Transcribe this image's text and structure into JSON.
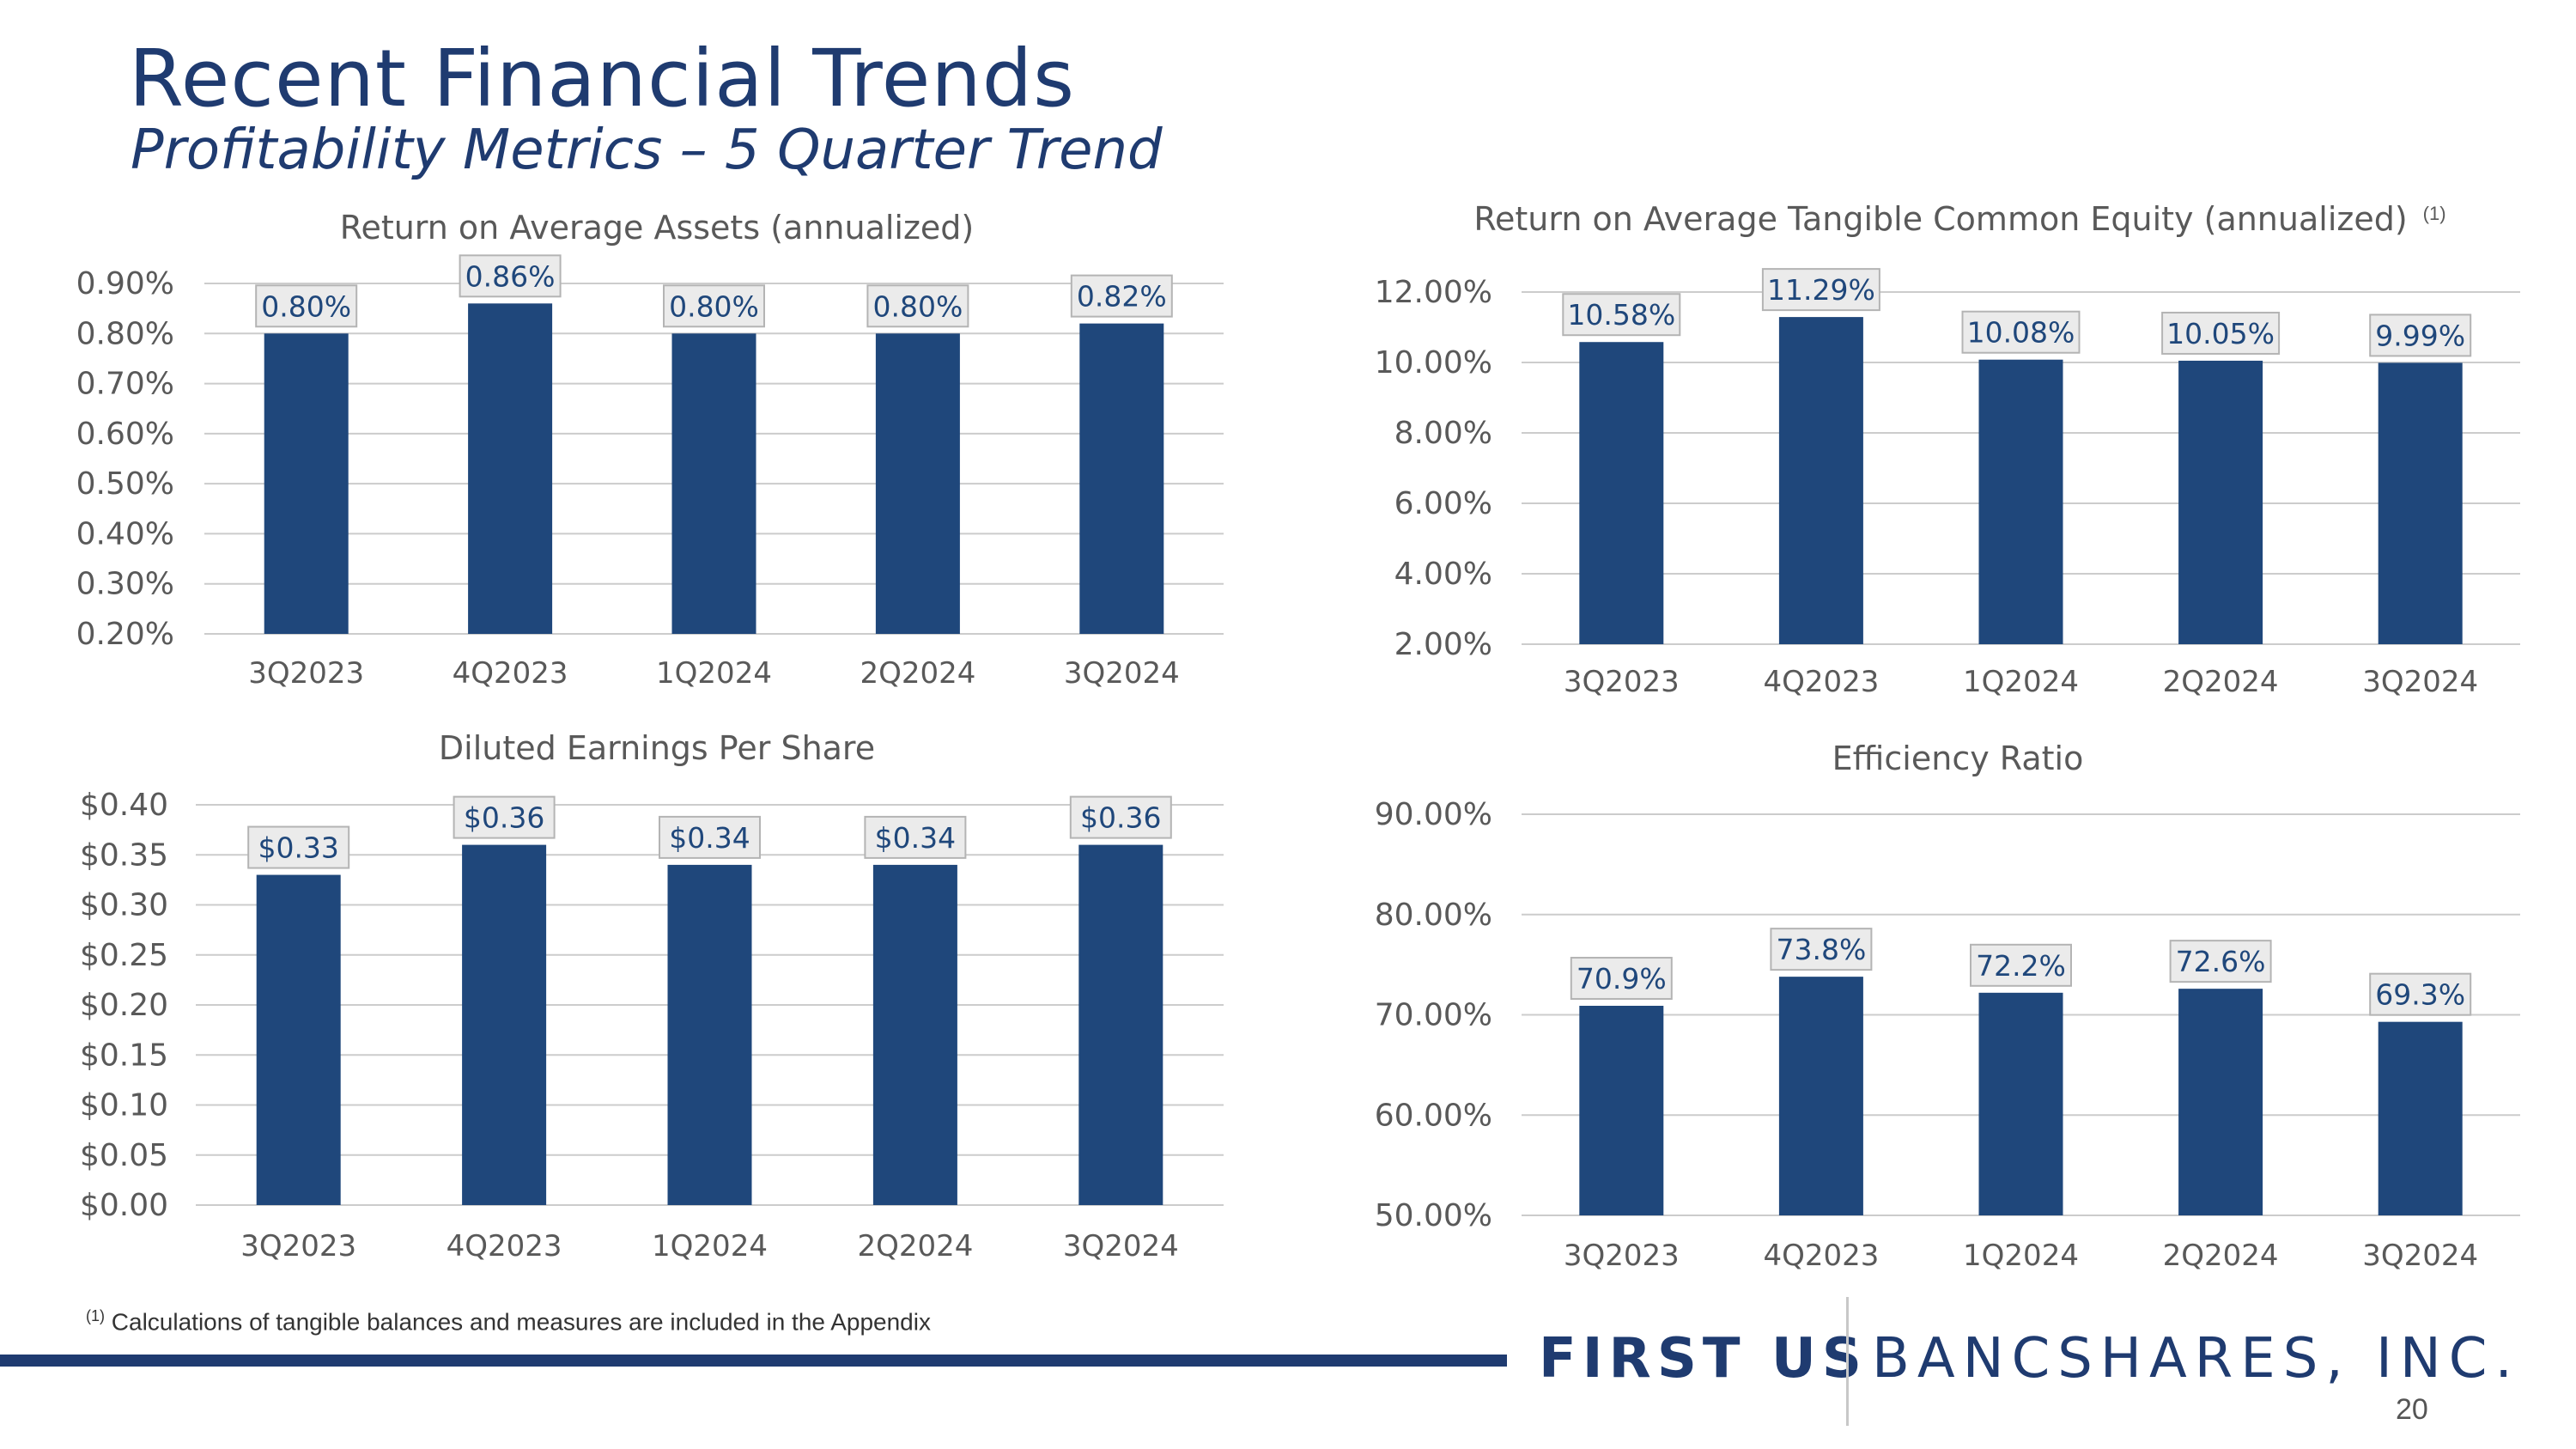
{
  "page": {
    "title": "Recent Financial Trends",
    "subtitle": "Profitability Metrics – 5 Quarter Trend",
    "footnote_marker": "(1)",
    "footnote_text": "Calculations of tangible balances and measures are included in the Appendix",
    "brand_primary": "FIRST US",
    "brand_secondary": "BANCSHARES, INC.",
    "page_number": "20"
  },
  "colors": {
    "bar": "#1f477b",
    "title": "#1f3b70",
    "label_text": "#1f477b",
    "label_bg": "#ebebeb",
    "label_border": "#b4b4b4",
    "grid": "#cccccc",
    "axis_text": "#595959"
  },
  "chart_data": [
    {
      "type": "bar",
      "title": "Return on Average Assets (annualized)",
      "title_note": "",
      "categories": [
        "3Q2023",
        "4Q2023",
        "1Q2024",
        "2Q2024",
        "3Q2024"
      ],
      "values": [
        0.8,
        0.86,
        0.8,
        0.8,
        0.82
      ],
      "data_labels": [
        "0.80%",
        "0.86%",
        "0.80%",
        "0.80%",
        "0.82%"
      ],
      "ylim": [
        0.2,
        0.9
      ],
      "yticks": [
        0.2,
        0.3,
        0.4,
        0.5,
        0.6,
        0.7,
        0.8,
        0.9
      ],
      "ytick_labels": [
        "0.20%",
        "0.30%",
        "0.40%",
        "0.50%",
        "0.60%",
        "0.70%",
        "0.80%",
        "0.90%"
      ],
      "xlabel": "",
      "ylabel": "",
      "grid": true
    },
    {
      "type": "bar",
      "title": "Return on Average Tangible Common Equity (annualized)",
      "title_note": "(1)",
      "categories": [
        "3Q2023",
        "4Q2023",
        "1Q2024",
        "2Q2024",
        "3Q2024"
      ],
      "values": [
        10.58,
        11.29,
        10.08,
        10.05,
        9.99
      ],
      "data_labels": [
        "10.58%",
        "11.29%",
        "10.08%",
        "10.05%",
        "9.99%"
      ],
      "ylim": [
        2.0,
        12.0
      ],
      "yticks": [
        2,
        4,
        6,
        8,
        10,
        12
      ],
      "ytick_labels": [
        "2.00%",
        "4.00%",
        "6.00%",
        "8.00%",
        "10.00%",
        "12.00%"
      ],
      "xlabel": "",
      "ylabel": "",
      "grid": true
    },
    {
      "type": "bar",
      "title": "Diluted Earnings Per Share",
      "title_note": "",
      "categories": [
        "3Q2023",
        "4Q2023",
        "1Q2024",
        "2Q2024",
        "3Q2024"
      ],
      "values": [
        0.33,
        0.36,
        0.34,
        0.34,
        0.36
      ],
      "data_labels": [
        "$0.33",
        "$0.36",
        "$0.34",
        "$0.34",
        "$0.36"
      ],
      "ylim": [
        0.0,
        0.4
      ],
      "yticks": [
        0,
        0.05,
        0.1,
        0.15,
        0.2,
        0.25,
        0.3,
        0.35,
        0.4
      ],
      "ytick_labels": [
        "$0.00",
        "$0.05",
        "$0.10",
        "$0.15",
        "$0.20",
        "$0.25",
        "$0.30",
        "$0.35",
        "$0.40"
      ],
      "xlabel": "",
      "ylabel": "",
      "grid": true
    },
    {
      "type": "bar",
      "title": "Efficiency Ratio",
      "title_note": "",
      "categories": [
        "3Q2023",
        "4Q2023",
        "1Q2024",
        "2Q2024",
        "3Q2024"
      ],
      "values": [
        70.9,
        73.8,
        72.2,
        72.6,
        69.3
      ],
      "data_labels": [
        "70.9%",
        "73.8%",
        "72.2%",
        "72.6%",
        "69.3%"
      ],
      "ylim": [
        50.0,
        90.0
      ],
      "yticks": [
        50,
        60,
        70,
        80,
        90
      ],
      "ytick_labels": [
        "50.00%",
        "60.00%",
        "70.00%",
        "80.00%",
        "90.00%"
      ],
      "xlabel": "",
      "ylabel": "",
      "grid": true
    }
  ]
}
